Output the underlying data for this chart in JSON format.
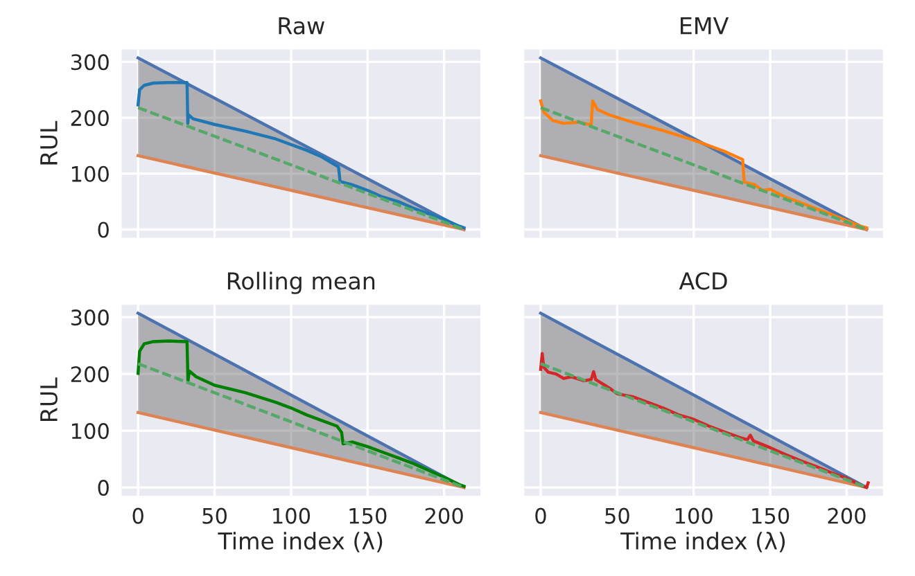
{
  "chart_data": [
    {
      "type": "line",
      "title": "Raw",
      "ylabel": "RUL",
      "xlim": [
        -10.7,
        223.7
      ],
      "ylim": [
        -15,
        322
      ],
      "xticks": [
        0,
        50,
        100,
        150,
        200
      ],
      "yticks": [
        0,
        100,
        200,
        300
      ],
      "grid": true,
      "tick_labels": "y",
      "series": [
        {
          "color": "#4c72b0",
          "x": [
            0,
            213
          ],
          "values": [
            307,
            0
          ]
        },
        {
          "color": "#dd8452",
          "x": [
            0,
            213
          ],
          "values": [
            132,
            0
          ]
        },
        {
          "color": "#55a868",
          "line_style": "dashed",
          "x": [
            0,
            213
          ],
          "values": [
            218,
            0
          ],
          "lower": [
            132,
            0
          ],
          "upper": [
            307,
            0
          ]
        },
        {
          "color": "#1f77b4",
          "x": [
            0,
            1,
            4,
            10,
            20,
            32,
            32.5,
            33,
            36,
            50,
            70,
            90,
            100,
            110,
            120,
            131,
            132,
            140,
            150,
            160,
            170,
            180,
            190,
            200,
            210,
            213
          ],
          "values": [
            223,
            250,
            258,
            262,
            263,
            263,
            190,
            205,
            198,
            188,
            176,
            162,
            152,
            142,
            130,
            112,
            86,
            80,
            70,
            58,
            50,
            38,
            28,
            18,
            6,
            3
          ]
        }
      ]
    },
    {
      "type": "line",
      "title": "EMV",
      "xlim": [
        -10.7,
        223.7
      ],
      "ylim": [
        -15,
        322
      ],
      "xticks": [
        0,
        50,
        100,
        150,
        200
      ],
      "yticks": [
        0,
        100,
        200,
        300
      ],
      "grid": true,
      "tick_labels": false,
      "series": [
        {
          "color": "#4c72b0",
          "x": [
            0,
            213
          ],
          "values": [
            307,
            0
          ]
        },
        {
          "color": "#dd8452",
          "x": [
            0,
            213
          ],
          "values": [
            132,
            0
          ]
        },
        {
          "color": "#55a868",
          "line_style": "dashed",
          "x": [
            0,
            213
          ],
          "values": [
            218,
            0
          ],
          "lower": [
            132,
            0
          ],
          "upper": [
            307,
            0
          ]
        },
        {
          "color": "#ff7f0e",
          "x": [
            0,
            2,
            8,
            15,
            25,
            33,
            34,
            37,
            45,
            60,
            80,
            100,
            120,
            132,
            133,
            140,
            145,
            150,
            160,
            170,
            180,
            190,
            200,
            210,
            213
          ],
          "values": [
            230,
            210,
            195,
            190,
            192,
            187,
            230,
            215,
            205,
            192,
            177,
            160,
            140,
            125,
            85,
            80,
            70,
            72,
            58,
            48,
            37,
            27,
            16,
            5,
            3
          ]
        }
      ]
    },
    {
      "type": "line",
      "title": "Rolling mean",
      "xlabel": "Time index (λ)",
      "ylabel": "RUL",
      "xlim": [
        -10.7,
        223.7
      ],
      "ylim": [
        -15,
        322
      ],
      "xticks": [
        0,
        50,
        100,
        150,
        200
      ],
      "yticks": [
        0,
        100,
        200,
        300
      ],
      "grid": true,
      "series": [
        {
          "color": "#4c72b0",
          "x": [
            0,
            213
          ],
          "values": [
            307,
            0
          ]
        },
        {
          "color": "#dd8452",
          "x": [
            0,
            213
          ],
          "values": [
            132,
            0
          ]
        },
        {
          "color": "#55a868",
          "line_style": "dashed",
          "x": [
            0,
            213
          ],
          "values": [
            218,
            0
          ],
          "lower": [
            132,
            0
          ],
          "upper": [
            307,
            0
          ]
        },
        {
          "color": "#008000",
          "x": [
            0,
            1,
            4,
            10,
            20,
            32,
            32.6,
            33.5,
            38,
            50,
            70,
            90,
            100,
            110,
            120,
            130,
            133,
            134,
            140,
            150,
            160,
            170,
            180,
            190,
            200,
            210,
            213
          ],
          "values": [
            201,
            240,
            253,
            257,
            258,
            257,
            187,
            205,
            195,
            180,
            167,
            150,
            140,
            128,
            118,
            108,
            97,
            77,
            80,
            72,
            62,
            52,
            42,
            30,
            18,
            5,
            2
          ]
        }
      ]
    },
    {
      "type": "line",
      "title": "ACD",
      "xlabel": "Time index (λ)",
      "xlim": [
        -10.7,
        223.7
      ],
      "ylim": [
        -15,
        322
      ],
      "xticks": [
        0,
        50,
        100,
        150,
        200
      ],
      "yticks": [
        0,
        100,
        200,
        300
      ],
      "grid": true,
      "tick_labels": "x",
      "series": [
        {
          "color": "#4c72b0",
          "x": [
            0,
            213
          ],
          "values": [
            307,
            0
          ]
        },
        {
          "color": "#dd8452",
          "x": [
            0,
            213
          ],
          "values": [
            132,
            0
          ]
        },
        {
          "color": "#55a868",
          "line_style": "dashed",
          "x": [
            0,
            213
          ],
          "values": [
            218,
            0
          ],
          "lower": [
            132,
            0
          ],
          "upper": [
            307,
            0
          ]
        },
        {
          "color": "#d62728",
          "x": [
            0,
            1,
            2,
            5,
            10,
            15,
            20,
            28,
            33,
            34.6,
            36,
            45,
            50,
            60,
            70,
            80,
            90,
            100,
            110,
            120,
            130,
            135,
            137,
            139,
            150,
            160,
            170,
            180,
            190,
            200,
            206,
            210,
            213,
            214
          ],
          "values": [
            208,
            236,
            212,
            203,
            200,
            192,
            195,
            188,
            190,
            204,
            190,
            175,
            165,
            160,
            150,
            140,
            128,
            120,
            108,
            98,
            88,
            84,
            92,
            82,
            70,
            58,
            47,
            37,
            26,
            16,
            8,
            3,
            0,
            8
          ]
        }
      ]
    }
  ]
}
